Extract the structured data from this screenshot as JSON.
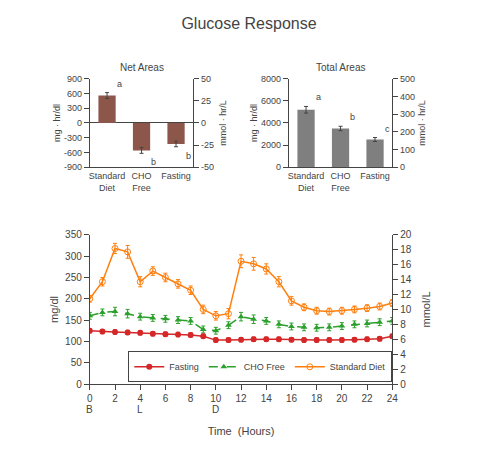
{
  "chart_data": [
    {
      "type": "line",
      "title": "Glucose Response",
      "x_label": "Time  (Hours)",
      "y_label": "mg/dl",
      "y2_label": "mmol/L",
      "x": [
        0,
        1,
        2,
        3,
        4,
        5,
        6,
        7,
        8,
        9,
        10,
        11,
        12,
        13,
        14,
        15,
        16,
        17,
        18,
        19,
        20,
        21,
        22,
        23,
        24
      ],
      "series": [
        {
          "name": "Standard Diet",
          "marker": "circle-open",
          "line_style": "solid",
          "values": [
            200,
            240,
            318,
            310,
            240,
            265,
            250,
            235,
            220,
            175,
            160,
            165,
            288,
            282,
            270,
            240,
            195,
            180,
            172,
            170,
            172,
            175,
            178,
            182,
            190
          ],
          "errors": [
            8,
            10,
            12,
            15,
            12,
            10,
            10,
            10,
            10,
            10,
            10,
            12,
            15,
            15,
            12,
            12,
            10,
            8,
            8,
            8,
            8,
            8,
            8,
            8,
            8
          ]
        },
        {
          "name": "CHO Free",
          "marker": "triangle-up",
          "line_style": "dash",
          "values": [
            160,
            168,
            170,
            165,
            158,
            155,
            153,
            150,
            148,
            128,
            125,
            138,
            158,
            152,
            148,
            140,
            135,
            133,
            132,
            133,
            136,
            140,
            142,
            145,
            148
          ],
          "errors": [
            8,
            8,
            10,
            10,
            8,
            8,
            8,
            8,
            8,
            8,
            8,
            8,
            10,
            10,
            8,
            8,
            8,
            8,
            8,
            8,
            8,
            8,
            8,
            8,
            8
          ]
        },
        {
          "name": "Fasting",
          "marker": "circle",
          "line_style": "solid",
          "values": [
            125,
            123,
            122,
            121,
            120,
            118,
            117,
            116,
            115,
            112,
            103,
            103,
            104,
            105,
            105,
            105,
            104,
            103,
            103,
            103,
            103,
            104,
            105,
            106,
            112
          ],
          "errors": [
            5,
            5,
            5,
            5,
            5,
            5,
            5,
            5,
            5,
            5,
            5,
            5,
            5,
            5,
            5,
            5,
            5,
            5,
            5,
            5,
            5,
            5,
            5,
            5,
            5
          ]
        }
      ],
      "annotations": [
        {
          "text": "B",
          "x": 0
        },
        {
          "text": "L",
          "x": 4
        },
        {
          "text": "D",
          "x": 10
        }
      ],
      "xlim": [
        0,
        24
      ],
      "xticks": [
        0,
        2,
        4,
        6,
        8,
        10,
        12,
        14,
        16,
        18,
        20,
        22,
        24
      ],
      "ylim": [
        0,
        350
      ],
      "yticks": [
        0,
        50,
        100,
        150,
        200,
        250,
        300,
        350
      ],
      "y2lim": [
        0,
        20
      ],
      "y2ticks": [
        0,
        2,
        4,
        6,
        8,
        10,
        12,
        14,
        16,
        18,
        20
      ],
      "grid": false,
      "legend": "lower right"
    },
    {
      "type": "bar",
      "title": "Net Areas",
      "y_label": "mg · hr/dl",
      "y2_label": "mmol · hr/L",
      "categories": [
        "Standard\nDiet",
        "CHO\nFree",
        "Fasting"
      ],
      "values": [
        560,
        -560,
        -430
      ],
      "errors": [
        60,
        60,
        55
      ],
      "annotations": [
        {
          "text": "a",
          "x": 0
        },
        {
          "text": "b",
          "x": 1
        },
        {
          "text": "b",
          "x": 2
        }
      ],
      "ylim": [
        -900,
        900
      ],
      "yticks": [
        -900,
        -600,
        -300,
        0,
        300,
        600,
        900
      ],
      "y2lim": [
        -50,
        50
      ],
      "y2ticks": [
        -50,
        -25,
        0,
        25,
        50
      ],
      "grid": false
    },
    {
      "type": "bar",
      "title": "Total Areas",
      "y_label": "mg · hr/dl",
      "y2_label": "mmol · hr/L",
      "categories": [
        "Standard\nDiet",
        "CHO\nFree",
        "Fasting"
      ],
      "values": [
        5200,
        3500,
        2500
      ],
      "errors": [
        300,
        200,
        180
      ],
      "annotations": [
        {
          "text": "a",
          "x": 0
        },
        {
          "text": "b",
          "x": 1
        },
        {
          "text": "c",
          "x": 2
        }
      ],
      "ylim": [
        0,
        8000
      ],
      "yticks": [
        0,
        2000,
        4000,
        6000,
        8000
      ],
      "y2lim": [
        0,
        500
      ],
      "y2ticks": [
        0,
        100,
        200,
        300,
        400,
        500
      ],
      "grid": false
    }
  ]
}
